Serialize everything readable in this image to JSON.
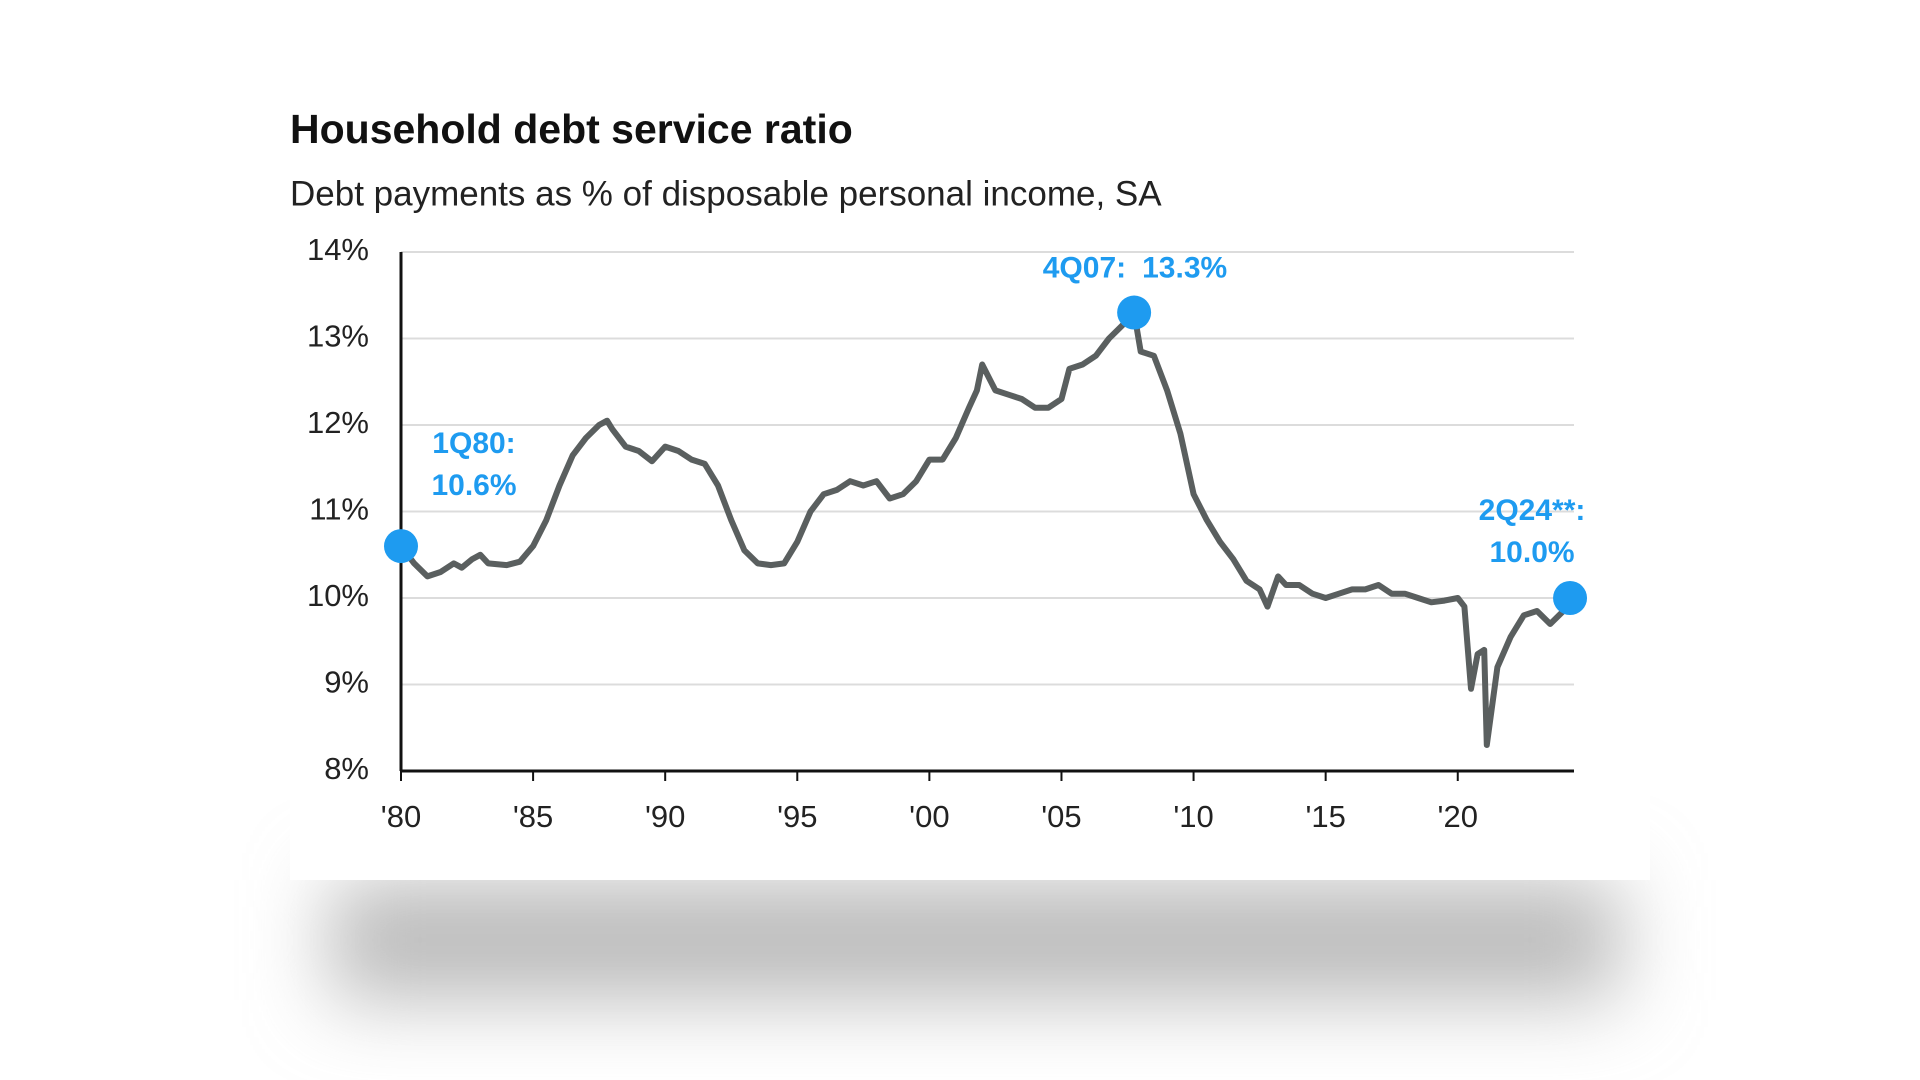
{
  "chart_data": {
    "type": "line",
    "title": "Household debt service ratio",
    "subtitle": "Debt payments as % of disposable personal income, SA",
    "series": [
      {
        "name": "Household debt service ratio",
        "color": "#5a5f5f",
        "x": [
          1980,
          1980.5,
          1981,
          1981.5,
          1982,
          1982.3,
          1982.7,
          1983,
          1983.3,
          1984,
          1984.5,
          1985,
          1985.5,
          1986,
          1986.5,
          1987,
          1987.5,
          1987.8,
          1988,
          1988.5,
          1989,
          1989.5,
          1990,
          1990.5,
          1991,
          1991.5,
          1992,
          1992.5,
          1993,
          1993.5,
          1994,
          1994.5,
          1995,
          1995.5,
          1996,
          1996.5,
          1997,
          1997.5,
          1998,
          1998.5,
          1999,
          1999.5,
          2000,
          2000.5,
          2001,
          2001.5,
          2001.8,
          2002,
          2002.5,
          2003,
          2003.5,
          2004,
          2004.5,
          2005,
          2005.3,
          2005.8,
          2006.3,
          2006.8,
          2007.3,
          2007.75,
          2008,
          2008.5,
          2009,
          2009.5,
          2010,
          2010.5,
          2011,
          2011.5,
          2012,
          2012.5,
          2012.8,
          2013.2,
          2013.5,
          2014,
          2014.5,
          2015,
          2015.5,
          2016,
          2016.5,
          2017,
          2017.5,
          2018,
          2018.5,
          2019,
          2019.5,
          2020,
          2020.25,
          2020.5,
          2020.75,
          2021,
          2021.1,
          2021.5,
          2022,
          2022.5,
          2023,
          2023.5,
          2024,
          2024.25
        ],
        "values": [
          10.6,
          10.4,
          10.25,
          10.3,
          10.4,
          10.35,
          10.45,
          10.5,
          10.4,
          10.38,
          10.42,
          10.6,
          10.9,
          11.3,
          11.65,
          11.85,
          12.0,
          12.05,
          11.95,
          11.75,
          11.7,
          11.58,
          11.75,
          11.7,
          11.6,
          11.55,
          11.3,
          10.9,
          10.55,
          10.4,
          10.38,
          10.4,
          10.65,
          11.0,
          11.2,
          11.25,
          11.35,
          11.3,
          11.35,
          11.15,
          11.2,
          11.35,
          11.6,
          11.6,
          11.85,
          12.2,
          12.4,
          12.7,
          12.4,
          12.35,
          12.3,
          12.2,
          12.2,
          12.3,
          12.65,
          12.7,
          12.8,
          13.0,
          13.15,
          13.3,
          12.85,
          12.8,
          12.4,
          11.9,
          11.2,
          10.9,
          10.65,
          10.45,
          10.2,
          10.1,
          9.9,
          10.25,
          10.15,
          10.15,
          10.05,
          10.0,
          10.05,
          10.1,
          10.1,
          10.15,
          10.05,
          10.05,
          10.0,
          9.95,
          9.97,
          10.0,
          9.9,
          8.95,
          9.35,
          9.4,
          8.3,
          9.2,
          9.55,
          9.8,
          9.85,
          9.7,
          9.85,
          10.0
        ]
      }
    ],
    "annotations": [
      {
        "x": 1980,
        "y": 10.6,
        "label": [
          "1Q80:",
          "10.6%"
        ],
        "color": "#1e9bf0"
      },
      {
        "x": 2007.75,
        "y": 13.3,
        "label": [
          "4Q07:",
          "13.3%"
        ],
        "color": "#1e9bf0"
      },
      {
        "x": 2024.25,
        "y": 10.0,
        "label": [
          "2Q24**:",
          "10.0%"
        ],
        "color": "#1e9bf0"
      }
    ],
    "xlim": [
      1980,
      2024.4
    ],
    "xticks": [
      {
        "value": 1980,
        "label": "'80"
      },
      {
        "value": 1985,
        "label": "'85"
      },
      {
        "value": 1990,
        "label": "'90"
      },
      {
        "value": 1995,
        "label": "'95"
      },
      {
        "value": 2000,
        "label": "'00"
      },
      {
        "value": 2005,
        "label": "'05"
      },
      {
        "value": 2010,
        "label": "'10"
      },
      {
        "value": 2015,
        "label": "'15"
      },
      {
        "value": 2020,
        "label": "'20"
      }
    ],
    "ylim": [
      8,
      14
    ],
    "yticks": [
      {
        "value": 8,
        "label": "8%"
      },
      {
        "value": 9,
        "label": "9%"
      },
      {
        "value": 10,
        "label": "10%"
      },
      {
        "value": 11,
        "label": "11%"
      },
      {
        "value": 12,
        "label": "12%"
      },
      {
        "value": 13,
        "label": "13%"
      },
      {
        "value": 14,
        "label": "14%"
      }
    ],
    "grid": true
  }
}
